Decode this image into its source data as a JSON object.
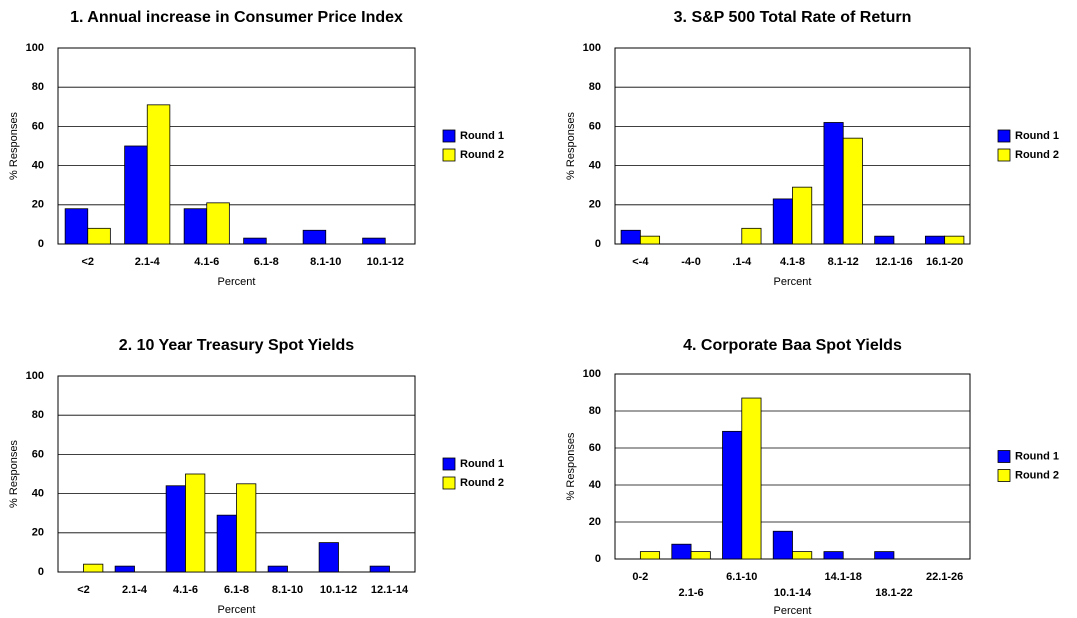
{
  "chart_data": [
    {
      "type": "bar",
      "title": "1. Annual increase in Consumer Price Index",
      "xlabel": "Percent",
      "ylabel": "% Responses",
      "categories": [
        "<2",
        "2.1-4",
        "4.1-6",
        "6.1-8",
        "8.1-10",
        "10.1-12"
      ],
      "series": [
        {
          "name": "Round 1",
          "color": "#0000ff",
          "values": [
            18,
            50,
            18,
            3,
            7,
            3
          ]
        },
        {
          "name": "Round 2",
          "color": "#ffff00",
          "values": [
            8,
            71,
            21,
            0,
            0,
            0
          ]
        }
      ],
      "ylim": [
        0,
        100
      ],
      "yticks": [
        0,
        20,
        40,
        60,
        80,
        100
      ],
      "grid": true,
      "legend": "right",
      "stagger_labels": false
    },
    {
      "type": "bar",
      "title": "3. S&P 500 Total Rate of Return",
      "xlabel": "Percent",
      "ylabel": "% Responses",
      "categories": [
        "<-4",
        "-4-0",
        ".1-4",
        "4.1-8",
        "8.1-12",
        "12.1-16",
        "16.1-20"
      ],
      "series": [
        {
          "name": "Round 1",
          "color": "#0000ff",
          "values": [
            7,
            0,
            0,
            23,
            62,
            4,
            4
          ]
        },
        {
          "name": "Round 2",
          "color": "#ffff00",
          "values": [
            4,
            0,
            8,
            29,
            54,
            0,
            4
          ]
        }
      ],
      "ylim": [
        0,
        100
      ],
      "yticks": [
        0,
        20,
        40,
        60,
        80,
        100
      ],
      "grid": true,
      "legend": "right",
      "stagger_labels": false
    },
    {
      "type": "bar",
      "title": "2. 10 Year Treasury Spot Yields",
      "xlabel": "Percent",
      "ylabel": "% Responses",
      "categories": [
        "<2",
        "2.1-4",
        "4.1-6",
        "6.1-8",
        "8.1-10",
        "10.1-12",
        "12.1-14"
      ],
      "series": [
        {
          "name": "Round 1",
          "color": "#0000ff",
          "values": [
            0,
            3,
            44,
            29,
            3,
            15,
            3
          ]
        },
        {
          "name": "Round 2",
          "color": "#ffff00",
          "values": [
            4,
            0,
            50,
            45,
            0,
            0,
            0
          ]
        }
      ],
      "ylim": [
        0,
        100
      ],
      "yticks": [
        0,
        20,
        40,
        60,
        80,
        100
      ],
      "grid": true,
      "legend": "right",
      "stagger_labels": false
    },
    {
      "type": "bar",
      "title": "4. Corporate Baa Spot Yields",
      "xlabel": "Percent",
      "ylabel": "% Responses",
      "categories": [
        "0-2",
        "2.1-6",
        "6.1-10",
        "10.1-14",
        "14.1-18",
        "18.1-22",
        "22.1-26"
      ],
      "series": [
        {
          "name": "Round 1",
          "color": "#0000ff",
          "values": [
            0,
            8,
            69,
            15,
            4,
            4,
            0
          ]
        },
        {
          "name": "Round 2",
          "color": "#ffff00",
          "values": [
            4,
            4,
            87,
            4,
            0,
            0,
            0
          ]
        }
      ],
      "ylim": [
        0,
        100
      ],
      "yticks": [
        0,
        20,
        40,
        60,
        80,
        100
      ],
      "grid": true,
      "legend": "right",
      "stagger_labels": true
    }
  ]
}
